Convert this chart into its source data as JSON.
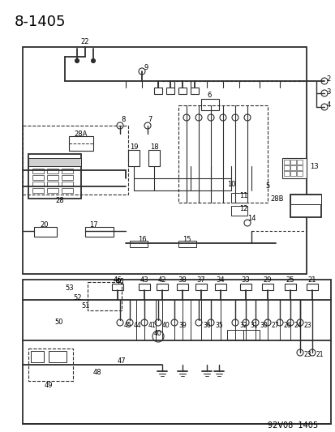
{
  "title": "8-1405",
  "footer": "92V08  1405",
  "bg_color": "#ffffff",
  "line_color": "#2d2d2d",
  "dashed_color": "#2d2d2d",
  "title_fontsize": 13,
  "footer_fontsize": 7,
  "label_fontsize": 6.5,
  "fig_width": 4.14,
  "fig_height": 5.33
}
